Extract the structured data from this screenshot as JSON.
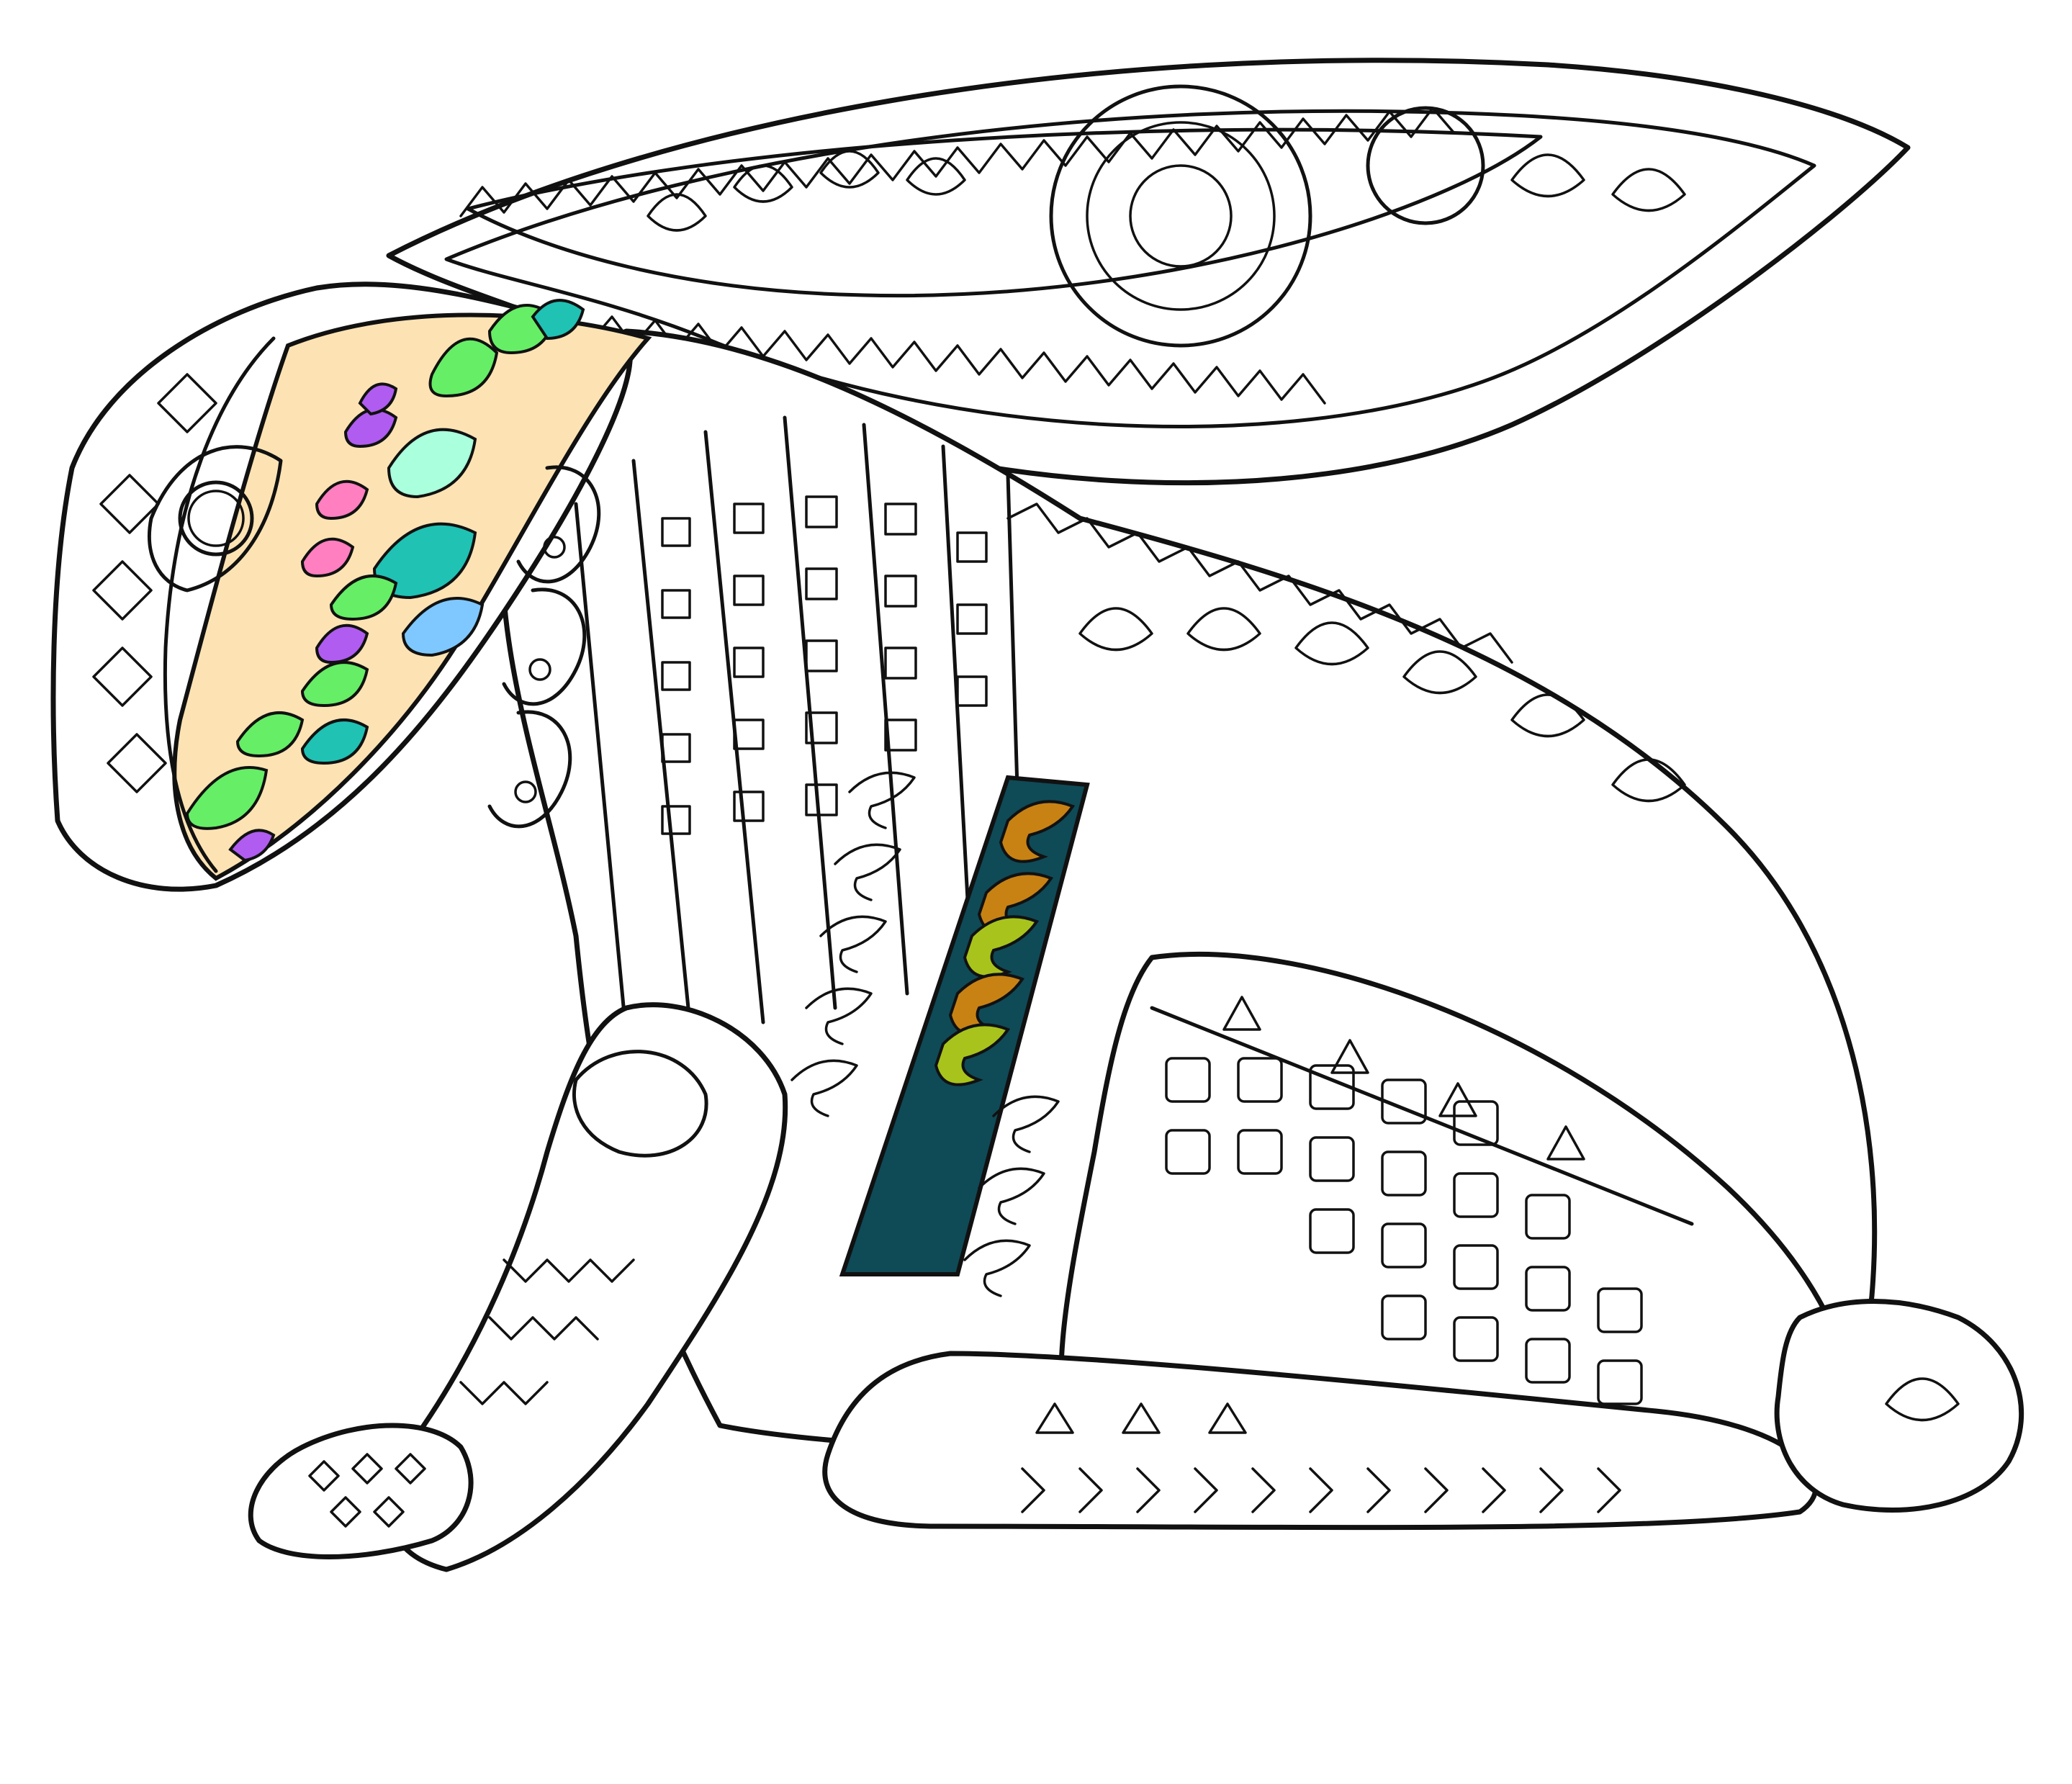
{
  "artwork": {
    "subject": "hare",
    "style": "zentangle coloring page",
    "colors": {
      "background": "#ffffff",
      "outline": "#111111",
      "face_fill": "#fde3b4",
      "leaf_green": "#66ee66",
      "leaf_mint": "#aaffdd",
      "leaf_teal": "#20c2b4",
      "leaf_blue": "#7fc8ff",
      "leaf_pink": "#ff7fc0",
      "leaf_purple": "#b05cf0",
      "band_dark": "#0f4a57",
      "band_olive": "#a8c41c",
      "band_brown": "#c88214"
    }
  }
}
